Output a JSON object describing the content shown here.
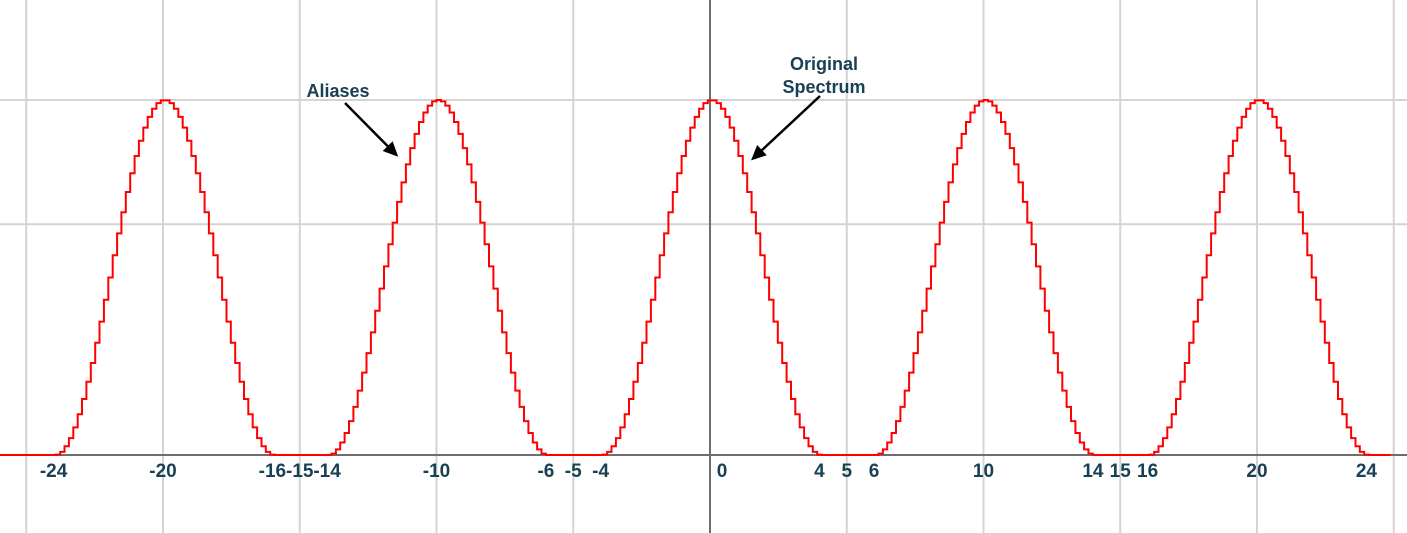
{
  "chart_data": {
    "type": "line",
    "title": "",
    "xlabel": "",
    "ylabel": "",
    "xlim": [
      -26,
      25
    ],
    "ylim": [
      0,
      1.3
    ],
    "grid": true,
    "x_gridlines": [
      -25,
      -20,
      -15,
      -10,
      -5,
      5,
      10,
      15,
      20,
      25
    ],
    "y_gridlines": [
      0.65,
      1.0
    ],
    "x_ticks": [
      {
        "value": -24,
        "label": "-24"
      },
      {
        "value": -20,
        "label": "-20"
      },
      {
        "value": -16,
        "label": "-16"
      },
      {
        "value": -15,
        "label": "-15"
      },
      {
        "value": -14,
        "label": "-14"
      },
      {
        "value": -10,
        "label": "-10"
      },
      {
        "value": -6,
        "label": "-6"
      },
      {
        "value": -5,
        "label": "-5"
      },
      {
        "value": -4,
        "label": "-4"
      },
      {
        "value": 0,
        "label": "0"
      },
      {
        "value": 4,
        "label": "4"
      },
      {
        "value": 5,
        "label": "5"
      },
      {
        "value": 6,
        "label": "6"
      },
      {
        "value": 10,
        "label": "10"
      },
      {
        "value": 14,
        "label": "14"
      },
      {
        "value": 15,
        "label": "15"
      },
      {
        "value": 16,
        "label": "16"
      },
      {
        "value": 20,
        "label": "20"
      },
      {
        "value": 24,
        "label": "24"
      }
    ],
    "series": [
      {
        "color": "#ff0000",
        "shape": "raised-cosine lobes of half-width 4, peak 1, repeating every 10",
        "peaks_x": [
          -20,
          -10,
          0,
          10,
          20
        ],
        "peak_y": 1.0,
        "support": [
          [
            -24,
            -16
          ],
          [
            -14,
            -6
          ],
          [
            -4,
            4
          ],
          [
            6,
            14
          ],
          [
            16,
            24
          ]
        ]
      }
    ],
    "annotations": [
      {
        "lines": [
          "Aliases"
        ],
        "arrow_to": {
          "x": -11.4,
          "y": 0.84
        }
      },
      {
        "lines": [
          "Original",
          "Spectrum"
        ],
        "arrow_to": {
          "x": 1.5,
          "y": 0.83
        }
      }
    ]
  }
}
